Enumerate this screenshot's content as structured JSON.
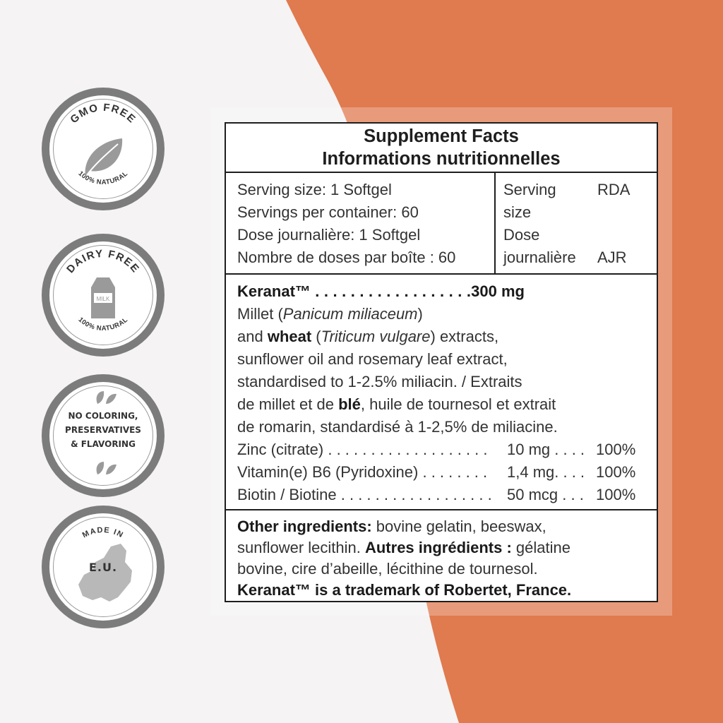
{
  "colors": {
    "background": "#f5f3f3",
    "accent": "#e07a4f",
    "badge_ring": "#7c7c7c",
    "border": "#1e1e1e"
  },
  "badges": [
    {
      "top_text": "GMO FREE",
      "bottom_text": "100% NATURAL",
      "icon": "leaf-icon"
    },
    {
      "top_text": "DAIRY FREE",
      "bottom_text": "100% NATURAL",
      "icon": "milk-carton-icon",
      "icon_label": "MILK"
    },
    {
      "lines": [
        "NO COLORING,",
        "PRESERVATIVES",
        "& FLAVORING"
      ],
      "icon": "leaves-icon"
    },
    {
      "top_text": "MADE IN",
      "center_text": "E.U.",
      "icon": "europe-map-icon"
    }
  ],
  "facts": {
    "title_en": "Supplement Facts",
    "title_fr": "Informations nutritionnelles",
    "serving": {
      "left_lines": [
        "Serving size: 1 Softgel",
        "Servings per container: 60",
        "Dose journalière: 1 Softgel",
        "Nombre de doses par boîte : 60"
      ],
      "col1_lines": [
        "Serving",
        "size",
        "Dose",
        "journalière"
      ],
      "col2_top": "RDA",
      "col2_bottom": "AJR"
    },
    "keranat": {
      "name": "Keranat™",
      "dots": " . . . . . . . . . . . . . . . . . .",
      "amount": "300 mg",
      "desc1_a": "Millet (",
      "desc1_b": "Panicum miliaceum",
      "desc1_c": ")",
      "desc2_a": "and ",
      "desc2_b": "wheat",
      "desc2_c": " (",
      "desc2_d": "Triticum vulgare",
      "desc2_e": ") extracts,",
      "desc3": "sunflower oil and rosemary leaf extract,",
      "desc4": "standardised to 1-2.5% miliacin. / Extraits",
      "desc5_a": "de millet et de ",
      "desc5_b": "blé",
      "desc5_c": ", huile de tournesol et extrait",
      "desc6": "de romarin, standardisé à 1-2,5% de miliacine."
    },
    "nutrients": [
      {
        "label": "Zinc (citrate) . . . . . . . . . . . . . . . . . . .",
        "amount": "10 mg . . . .",
        "rda": "100%"
      },
      {
        "label": "Vitamin(e) B6 (Pyridoxine) . . . . . . . .",
        "amount": "1,4 mg. . . .",
        "rda": "100%"
      },
      {
        "label": "Biotin / Biotine . . . . . . . . . . . . . . . . . .",
        "amount": "50 mcg . . .",
        "rda": "100%"
      }
    ],
    "other": {
      "l1_bold": "Other ingredients:",
      "l1_rest": " bovine gelatin, beeswax,",
      "l2_a": "sunflower lecithin. ",
      "l2_bold": "Autres ingrédients :",
      "l2_rest": " gélatine",
      "l3": "bovine, cire d’abeille, lécithine de tournesol.",
      "l4": "Keranat™ is a trademark of Robertet, France."
    }
  }
}
